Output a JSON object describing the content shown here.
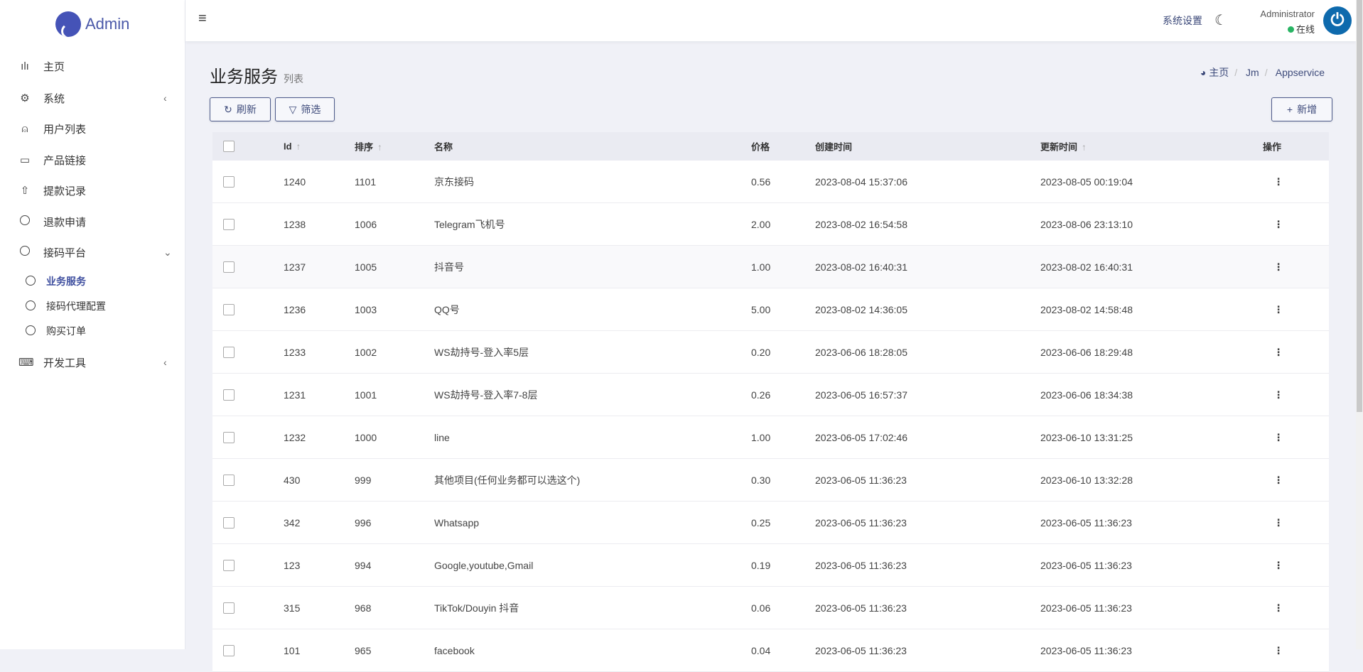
{
  "app": {
    "name": "Admin"
  },
  "sidebar": {
    "items": [
      {
        "label": "主页",
        "icon": "bar-chart-icon",
        "glyph": "ılı"
      },
      {
        "label": "系统",
        "icon": "gear-icon",
        "glyph": "⚙",
        "arrow": "‹"
      },
      {
        "label": "用户列表",
        "icon": "user-icon",
        "glyph": "⍝"
      },
      {
        "label": "产品链接",
        "icon": "airplay-icon",
        "glyph": "▭"
      },
      {
        "label": "提款记录",
        "icon": "upload-icon",
        "glyph": "⇧"
      },
      {
        "label": "退款申请",
        "icon": "circle-icon"
      },
      {
        "label": "接码平台",
        "icon": "circle-icon",
        "arrow": "⌄"
      },
      {
        "label": "业务服务",
        "icon": "circle-icon",
        "active": true
      },
      {
        "label": "接码代理配置",
        "icon": "circle-icon"
      },
      {
        "label": "购买订单",
        "icon": "circle-icon"
      },
      {
        "label": "开发工具",
        "icon": "keyboard-icon",
        "glyph": "⌨",
        "arrow": "‹"
      }
    ]
  },
  "header": {
    "menu_icon": "≡",
    "settings": "系统设置",
    "theme_icon": "moon-icon",
    "user": "Administrator",
    "status": "在线",
    "status_color": "#28b463"
  },
  "page": {
    "title": "业务服务",
    "subtitle": "列表"
  },
  "breadcrumb": [
    "主页",
    "Jm",
    "Appservice"
  ],
  "toolbar": {
    "refresh": "刷新",
    "filter": "筛选",
    "add": "新增"
  },
  "table": {
    "columns": [
      "Id",
      "排序",
      "名称",
      "价格",
      "创建时间",
      "更新时间",
      "操作"
    ],
    "rows": [
      [
        "1240",
        "1101",
        "京东接码",
        "0.56",
        "2023-08-04 15:37:06",
        "2023-08-05 00:19:04"
      ],
      [
        "1238",
        "1006",
        "Telegram飞机号",
        "2.00",
        "2023-08-02 16:54:58",
        "2023-08-06 23:13:10"
      ],
      [
        "1237",
        "1005",
        "抖音号",
        "1.00",
        "2023-08-02 16:40:31",
        "2023-08-02 16:40:31"
      ],
      [
        "1236",
        "1003",
        "QQ号",
        "5.00",
        "2023-08-02 14:36:05",
        "2023-08-02 14:58:48"
      ],
      [
        "1233",
        "1002",
        "WS劫持号-登入率5层",
        "0.20",
        "2023-06-06 18:28:05",
        "2023-06-06 18:29:48"
      ],
      [
        "1231",
        "1001",
        "WS劫持号-登入率7-8层",
        "0.26",
        "2023-06-05 16:57:37",
        "2023-06-06 18:34:38"
      ],
      [
        "1232",
        "1000",
        "line",
        "1.00",
        "2023-06-05 17:02:46",
        "2023-06-10 13:31:25"
      ],
      [
        "430",
        "999",
        "其他项目(任何业务都可以选这个)",
        "0.30",
        "2023-06-05 11:36:23",
        "2023-06-10 13:32:28"
      ],
      [
        "342",
        "996",
        "Whatsapp",
        "0.25",
        "2023-06-05 11:36:23",
        "2023-06-05 11:36:23"
      ],
      [
        "123",
        "994",
        "Google,youtube,Gmail",
        "0.19",
        "2023-06-05 11:36:23",
        "2023-06-05 11:36:23"
      ],
      [
        "315",
        "968",
        "TikTok/Douyin 抖音",
        "0.06",
        "2023-06-05 11:36:23",
        "2023-06-05 11:36:23"
      ],
      [
        "101",
        "965",
        "facebook",
        "0.04",
        "2023-06-05 11:36:23",
        "2023-06-05 11:36:23"
      ]
    ]
  }
}
